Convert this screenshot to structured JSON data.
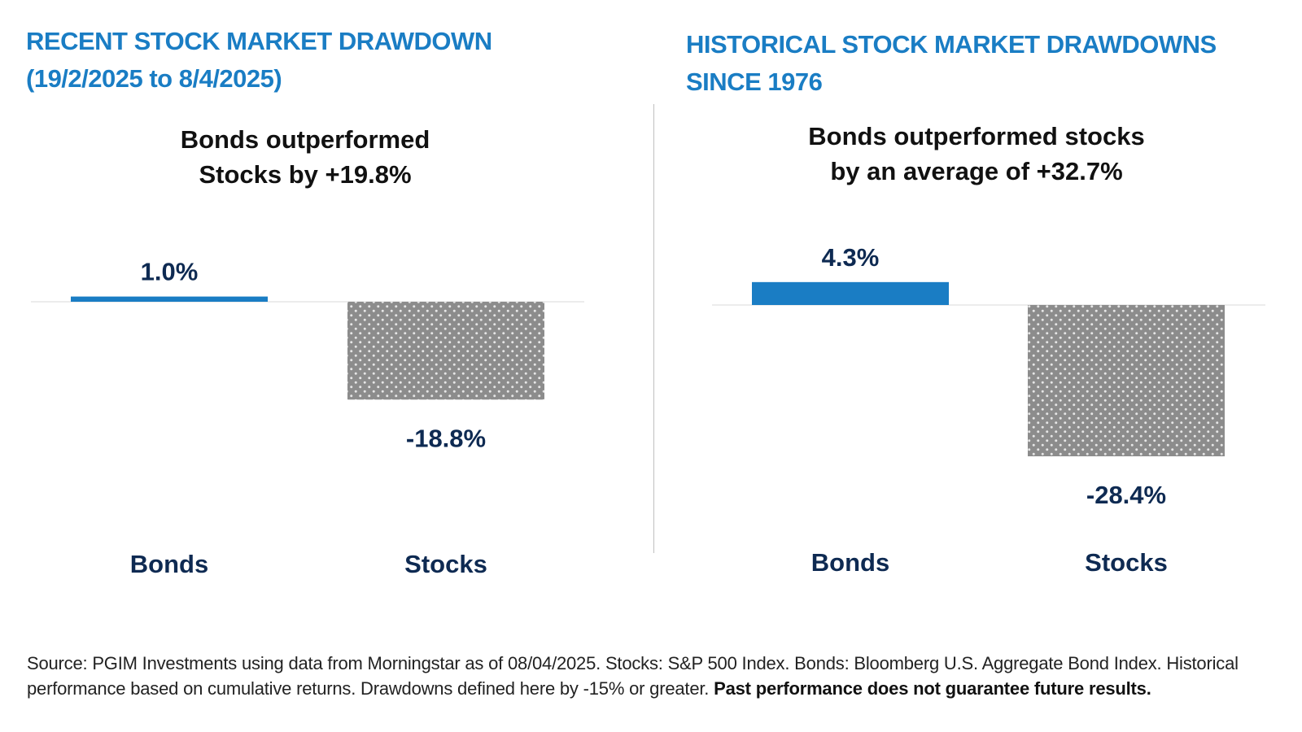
{
  "panels": [
    {
      "title_lines": [
        "RECENT STOCK MARKET DRAWDOWN",
        "(19/2/2025 to 8/4/2025)"
      ],
      "subtitle_lines": [
        "Bonds outperformed",
        "Stocks by +19.8%"
      ]
    },
    {
      "title_lines": [
        "HISTORICAL STOCK MARKET DRAWDOWNS",
        "SINCE 1976"
      ],
      "subtitle_lines": [
        "Bonds outperformed stocks",
        "by an average of +32.7%"
      ]
    }
  ],
  "chart_data": [
    {
      "type": "bar",
      "title": "RECENT STOCK MARKET DRAWDOWN (19/2/2025 to 8/4/2025)",
      "categories": [
        "Bonds",
        "Stocks"
      ],
      "values": [
        1.0,
        -18.8
      ],
      "value_labels": [
        "1.0%",
        "-18.8%"
      ],
      "colors": [
        "#1a7dc4",
        "#8c8c8c"
      ],
      "patterns": [
        "solid",
        "dotted"
      ],
      "ylim": [
        -25,
        5
      ],
      "grid": false,
      "legend": "none"
    },
    {
      "type": "bar",
      "title": "HISTORICAL STOCK MARKET DRAWDOWNS SINCE 1976",
      "categories": [
        "Bonds",
        "Stocks"
      ],
      "values": [
        4.3,
        -28.4
      ],
      "value_labels": [
        "4.3%",
        "-28.4%"
      ],
      "colors": [
        "#1a7dc4",
        "#8c8c8c"
      ],
      "patterns": [
        "solid",
        "dotted"
      ],
      "ylim": [
        -35,
        5
      ],
      "grid": false,
      "legend": "none"
    }
  ],
  "footer": {
    "source_text": "Source: PGIM Investments using data from Morningstar as of 08/04/2025. Stocks: S&P 500 Index. Bonds: Bloomberg U.S. Aggregate Bond Index. Historical performance based on cumulative returns. Drawdowns defined here by -15% or greater.",
    "disclaimer": "Past performance does not guarantee future results."
  }
}
